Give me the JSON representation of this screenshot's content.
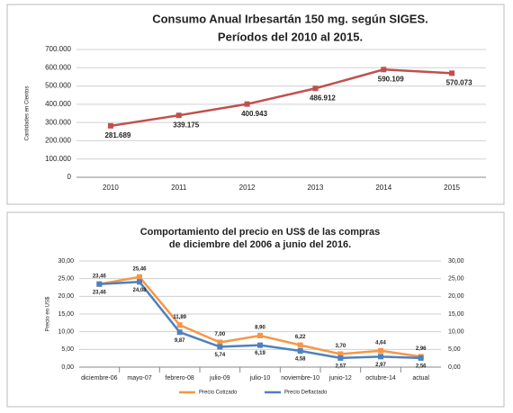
{
  "chart_data": [
    {
      "type": "line",
      "title": [
        "Consumo Anual Irbesartán 150 mg. según SIGES.",
        "Períodos del 2010 al 2015."
      ],
      "y_label": "Cantidades en Cientos",
      "categories": [
        "2010",
        "2011",
        "2012",
        "2013",
        "2014",
        "2015"
      ],
      "values": [
        281689,
        339175,
        400943,
        486912,
        590109,
        570073
      ],
      "value_labels": [
        "281.689",
        "339.175",
        "400.943",
        "486.912",
        "590.109",
        "570.073"
      ],
      "color": "#c0504d",
      "ylim": [
        0,
        700000
      ],
      "yticks": [
        0,
        {
          "value": 100000,
          "label": "100.000"
        },
        {
          "value": 200000,
          "label": "200.000"
        },
        {
          "value": 300000,
          "label": "300.000"
        },
        {
          "value": 400000,
          "label": "400.000"
        },
        {
          "value": 500000,
          "label": "500.000"
        },
        {
          "value": 600000,
          "label": "600.000"
        },
        {
          "value": 700000,
          "label": "700.000"
        }
      ],
      "grid": true
    },
    {
      "type": "line",
      "title": [
        "Comportamiento del precio en US$ de las compras",
        "de diciembre del 2006 a junio del 2016."
      ],
      "y_label": "Precio en US$",
      "categories": [
        "diciembre-06",
        "mayo-07",
        "febrero-08",
        "julio-09",
        "julio-10",
        "noviembre-10",
        "junio-12",
        "octubre-14",
        "actual"
      ],
      "series": [
        {
          "name": "Precio Cotizado",
          "color": "#f79646",
          "values": [
            23.46,
            25.46,
            11.89,
            7.0,
            8.9,
            6.22,
            3.7,
            4.64,
            2.96
          ],
          "value_labels": [
            "23,46",
            "25,46",
            "11,89",
            "7,00",
            "8,90",
            "6,22",
            "3,70",
            "4,64",
            "2,96"
          ]
        },
        {
          "name": "Precio Deflactado",
          "color": "#4f81bd",
          "values": [
            23.46,
            24.08,
            9.87,
            5.74,
            6.19,
            4.58,
            2.57,
            2.97,
            2.56
          ],
          "value_labels": [
            "23,46",
            "24,08",
            "9,87",
            "5,74",
            "6,19",
            "4,58",
            "2,57",
            "2,97",
            "2,56"
          ]
        }
      ],
      "ylim": [
        0,
        30
      ],
      "yticks": [
        {
          "value": 0,
          "label": "0,00"
        },
        {
          "value": 5,
          "label": "5,00"
        },
        {
          "value": 10,
          "label": "10,00"
        },
        {
          "value": 15,
          "label": "15,00"
        },
        {
          "value": 20,
          "label": "20,00"
        },
        {
          "value": 25,
          "label": "25,00"
        },
        {
          "value": 30,
          "label": "30,00"
        }
      ],
      "y2lim": [
        0,
        30
      ],
      "y2ticks": [
        {
          "value": 0,
          "label": "0,00"
        },
        {
          "value": 5,
          "label": "5,00"
        },
        {
          "value": 10,
          "label": "10,00"
        },
        {
          "value": 15,
          "label": "15,00"
        },
        {
          "value": 20,
          "label": "20,00"
        },
        {
          "value": 25,
          "label": "25,00"
        },
        {
          "value": 30,
          "label": "30,00"
        }
      ],
      "grid": true,
      "legend": "bottom"
    }
  ]
}
